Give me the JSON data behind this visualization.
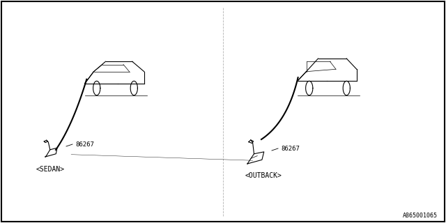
{
  "bg_color": "#ffffff",
  "border_color": "#000000",
  "line_color": "#000000",
  "text_color": "#000000",
  "title": "",
  "part_number_sedan": "86267",
  "part_number_outback": "86267",
  "label_sedan": "<SEDAN>",
  "label_outback": "<OUTBACK>",
  "ref_number": "A865001065",
  "fig_width": 6.4,
  "fig_height": 3.2,
  "dpi": 100
}
